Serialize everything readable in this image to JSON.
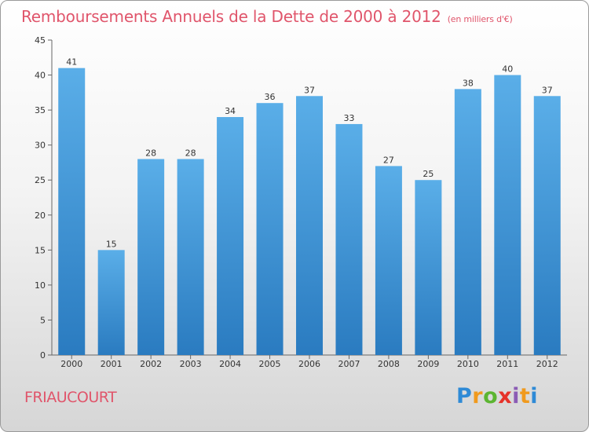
{
  "header": {
    "title": "Remboursements Annuels de la Dette de 2000 à 2012",
    "subtitle": "(en milliers d'€)"
  },
  "footer": {
    "commune": "FRIAUCOURT",
    "brand": "Proxiti"
  },
  "colors": {
    "title": "#e0556b",
    "bar_top": "#5aaee8",
    "bar_bottom": "#2a7bc0"
  },
  "chart_data": {
    "type": "bar",
    "title": "Remboursements Annuels de la Dette de 2000 à 2012",
    "subtitle": "(en milliers d'€)",
    "categories": [
      "2000",
      "2001",
      "2002",
      "2003",
      "2004",
      "2005",
      "2006",
      "2007",
      "2008",
      "2009",
      "2010",
      "2011",
      "2012"
    ],
    "values": [
      41,
      15,
      28,
      28,
      34,
      36,
      37,
      33,
      27,
      25,
      38,
      40,
      37
    ],
    "ylim": [
      0,
      45
    ],
    "yticks": [
      0,
      5,
      10,
      15,
      20,
      25,
      30,
      35,
      40,
      45
    ],
    "grid": false,
    "legend": "none"
  }
}
